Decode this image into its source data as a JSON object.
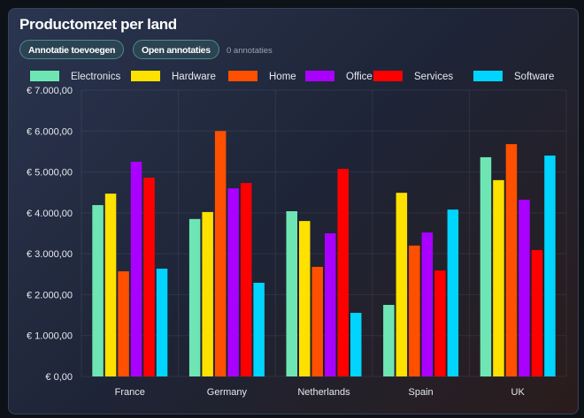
{
  "header": {
    "title": "Productomzet per land",
    "add_annotation": "Annotatie toevoegen",
    "open_annotations": "Open annotaties",
    "annotation_count": "0 annotaties"
  },
  "chart_data": {
    "type": "bar",
    "title": "Productomzet per land",
    "categories": [
      "France",
      "Germany",
      "Netherlands",
      "Spain",
      "UK"
    ],
    "ylim": [
      0,
      7000
    ],
    "yticks": [
      0,
      1000,
      2000,
      3000,
      4000,
      5000,
      6000,
      7000
    ],
    "ytick_labels": [
      "€ 0,00",
      "€ 1.000,00",
      "€ 2.000,00",
      "€ 3.000,00",
      "€ 4.000,00",
      "€ 5.000,00",
      "€ 6.000,00",
      "€ 7.000,00"
    ],
    "grid": true,
    "legend": "top",
    "series": [
      {
        "name": "Electronics",
        "color": "#6ee6b4",
        "values": [
          4190,
          3850,
          4040,
          1750,
          5360
        ]
      },
      {
        "name": "Hardware",
        "color": "#ffe100",
        "values": [
          4470,
          4020,
          3800,
          4490,
          4800
        ]
      },
      {
        "name": "Home",
        "color": "#ff5000",
        "values": [
          2570,
          6000,
          2680,
          3200,
          5680
        ]
      },
      {
        "name": "Office",
        "color": "#aa00ff",
        "values": [
          5250,
          4600,
          3500,
          3520,
          4320
        ]
      },
      {
        "name": "Services",
        "color": "#ff0000",
        "values": [
          4860,
          4730,
          5075,
          2590,
          3090
        ]
      },
      {
        "name": "Software",
        "color": "#00d4ff",
        "values": [
          2635,
          2290,
          1555,
          4080,
          5400
        ]
      }
    ]
  }
}
